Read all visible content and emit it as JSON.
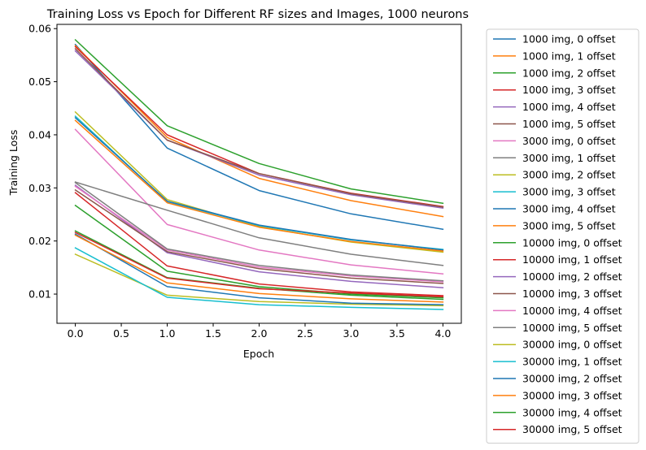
{
  "chart_data": {
    "type": "line",
    "title": "Training Loss vs Epoch for Different RF sizes and Images, 1000 neurons",
    "xlabel": "Epoch",
    "ylabel": "Training Loss",
    "xlim": [
      -0.2,
      4.2
    ],
    "ylim": [
      0.0045,
      0.0608
    ],
    "x": [
      0,
      1,
      2,
      3,
      4
    ],
    "xticks": [
      0.0,
      0.5,
      1.0,
      1.5,
      2.0,
      2.5,
      3.0,
      3.5,
      4.0
    ],
    "xtick_labels": [
      "0.0",
      "0.5",
      "1.0",
      "1.5",
      "2.0",
      "2.5",
      "3.0",
      "3.5",
      "4.0"
    ],
    "yticks": [
      0.01,
      0.02,
      0.03,
      0.04,
      0.05,
      0.06
    ],
    "ytick_labels": [
      "0.01",
      "0.02",
      "0.03",
      "0.04",
      "0.05",
      "0.06"
    ],
    "grid": false,
    "legend_position": "outside-right",
    "series": [
      {
        "name": "1000 img, 0 offset",
        "color": "#1f77b4",
        "values": [
          0.057,
          0.0375,
          0.0295,
          0.0251,
          0.0222
        ]
      },
      {
        "name": "1000 img, 1 offset",
        "color": "#ff7f0e",
        "values": [
          0.0568,
          0.0395,
          0.0318,
          0.0276,
          0.0246
        ]
      },
      {
        "name": "1000 img, 2 offset",
        "color": "#2ca02c",
        "values": [
          0.0579,
          0.0417,
          0.0346,
          0.0298,
          0.0271
        ]
      },
      {
        "name": "1000 img, 3 offset",
        "color": "#d62728",
        "values": [
          0.0566,
          0.04,
          0.0327,
          0.029,
          0.0265
        ]
      },
      {
        "name": "1000 img, 4 offset",
        "color": "#9467bd",
        "values": [
          0.0558,
          0.039,
          0.0324,
          0.0287,
          0.0262
        ]
      },
      {
        "name": "1000 img, 5 offset",
        "color": "#8c564b",
        "values": [
          0.0562,
          0.039,
          0.0327,
          0.0289,
          0.0264
        ]
      },
      {
        "name": "3000 img, 0 offset",
        "color": "#e377c2",
        "values": [
          0.041,
          0.0231,
          0.0183,
          0.0155,
          0.0138
        ]
      },
      {
        "name": "3000 img, 1 offset",
        "color": "#7f7f7f",
        "values": [
          0.0311,
          0.0258,
          0.0206,
          0.0175,
          0.0154
        ]
      },
      {
        "name": "3000 img, 2 offset",
        "color": "#bcbd22",
        "values": [
          0.0443,
          0.0278,
          0.0227,
          0.0198,
          0.0179
        ]
      },
      {
        "name": "3000 img, 3 offset",
        "color": "#17becf",
        "values": [
          0.0435,
          0.0274,
          0.0229,
          0.0202,
          0.0184
        ]
      },
      {
        "name": "3000 img, 4 offset",
        "color": "#1f77b4",
        "values": [
          0.0432,
          0.0275,
          0.023,
          0.0203,
          0.0183
        ]
      },
      {
        "name": "3000 img, 5 offset",
        "color": "#ff7f0e",
        "values": [
          0.0427,
          0.0272,
          0.0226,
          0.0199,
          0.0181
        ]
      },
      {
        "name": "10000 img, 0 offset",
        "color": "#2ca02c",
        "values": [
          0.0267,
          0.0143,
          0.0114,
          0.01,
          0.0093
        ]
      },
      {
        "name": "10000 img, 1 offset",
        "color": "#d62728",
        "values": [
          0.0291,
          0.0153,
          0.0119,
          0.0104,
          0.0097
        ]
      },
      {
        "name": "10000 img, 2 offset",
        "color": "#9467bd",
        "values": [
          0.0305,
          0.0178,
          0.0142,
          0.0124,
          0.0112
        ]
      },
      {
        "name": "10000 img, 3 offset",
        "color": "#8c564b",
        "values": [
          0.0296,
          0.018,
          0.0148,
          0.013,
          0.012
        ]
      },
      {
        "name": "10000 img, 4 offset",
        "color": "#e377c2",
        "values": [
          0.0303,
          0.0183,
          0.0151,
          0.0134,
          0.0123
        ]
      },
      {
        "name": "10000 img, 5 offset",
        "color": "#7f7f7f",
        "values": [
          0.031,
          0.0185,
          0.0154,
          0.0136,
          0.0125
        ]
      },
      {
        "name": "30000 img, 0 offset",
        "color": "#bcbd22",
        "values": [
          0.0175,
          0.0098,
          0.0086,
          0.0081,
          0.0078
        ]
      },
      {
        "name": "30000 img, 1 offset",
        "color": "#17becf",
        "values": [
          0.0187,
          0.0094,
          0.008,
          0.0075,
          0.0071
        ]
      },
      {
        "name": "30000 img, 2 offset",
        "color": "#1f77b4",
        "values": [
          0.0213,
          0.0114,
          0.0093,
          0.0083,
          0.008
        ]
      },
      {
        "name": "30000 img, 3 offset",
        "color": "#ff7f0e",
        "values": [
          0.0211,
          0.0121,
          0.0101,
          0.0091,
          0.0085
        ]
      },
      {
        "name": "30000 img, 4 offset",
        "color": "#2ca02c",
        "values": [
          0.0219,
          0.0131,
          0.0111,
          0.0098,
          0.009
        ]
      },
      {
        "name": "30000 img, 5 offset",
        "color": "#d62728",
        "values": [
          0.0216,
          0.013,
          0.011,
          0.0102,
          0.0095
        ]
      }
    ]
  }
}
